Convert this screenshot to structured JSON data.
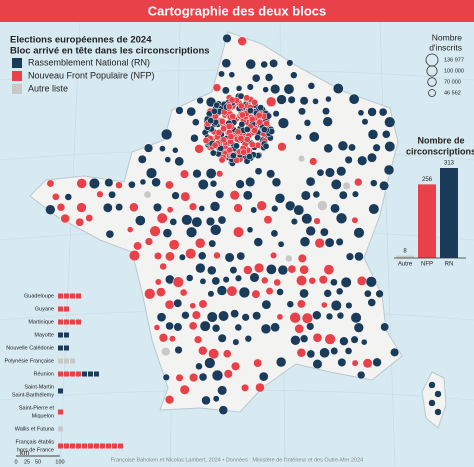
{
  "header": {
    "title": "Cartographie des deux blocs"
  },
  "subtitle": [
    "Elections européennes de 2024",
    "Bloc arrivé en tête dans les circonscriptions"
  ],
  "legend": [
    {
      "name": "Rassemblement National (RN)",
      "color": "#1b3b5a"
    },
    {
      "name": "Nouveau Front Populaire (NFP)",
      "color": "#e8414a"
    },
    {
      "name": "Autre liste",
      "color": "#c8c8c8"
    }
  ],
  "size_legend": {
    "title": [
      "Nombre",
      "d'inscrits"
    ],
    "values": [
      {
        "value": 136977,
        "label": "136 977"
      },
      {
        "value": 100000,
        "label": "100 000"
      },
      {
        "value": 70000,
        "label": "70 000"
      },
      {
        "value": 46562,
        "label": "46 562"
      }
    ]
  },
  "chart_data": {
    "type": "bar",
    "title": [
      "Nombre de",
      "circonscriptions"
    ],
    "categories": [
      "Autre",
      "NFP",
      "RN"
    ],
    "values": [
      8,
      256,
      313
    ],
    "colors": [
      "#c8c8c8",
      "#e8414a",
      "#1b3b5a"
    ]
  },
  "overseas": [
    {
      "label": [
        "Guadeloupe"
      ],
      "counts": [
        0,
        4,
        0
      ]
    },
    {
      "label": [
        "Guyane"
      ],
      "counts": [
        0,
        2,
        0
      ]
    },
    {
      "label": [
        "Martinique"
      ],
      "counts": [
        0,
        4,
        0
      ]
    },
    {
      "label": [
        "Mayotte"
      ],
      "counts": [
        2,
        0,
        0
      ]
    },
    {
      "label": [
        "Nouvelle Calédonie"
      ],
      "counts": [
        2,
        0,
        0
      ]
    },
    {
      "label": [
        "Polynésie Française"
      ],
      "counts": [
        0,
        0,
        3
      ]
    },
    {
      "label": [
        "Réunion"
      ],
      "counts": [
        3,
        4,
        0
      ]
    },
    {
      "label": [
        "Saint-Martin",
        "Saint-Barthélemy"
      ],
      "counts": [
        1,
        0,
        0
      ]
    },
    {
      "label": [
        "Saint-Pierre et",
        "Miquelon"
      ],
      "counts": [
        0,
        1,
        0
      ]
    },
    {
      "label": [
        "Wallis et Futuna"
      ],
      "counts": [
        0,
        0,
        1
      ]
    },
    {
      "label": [
        "Français établis",
        "hors de France"
      ],
      "counts": [
        0,
        11,
        0
      ]
    }
  ],
  "scale": {
    "unit": "km",
    "ticks": [
      "0",
      "25",
      "50",
      "100"
    ]
  },
  "credits": "Françoise Bahoken et Nicolas Lambert, 2024 • Données : Ministère de l'Intérieur et des Outre-Mer 2024"
}
